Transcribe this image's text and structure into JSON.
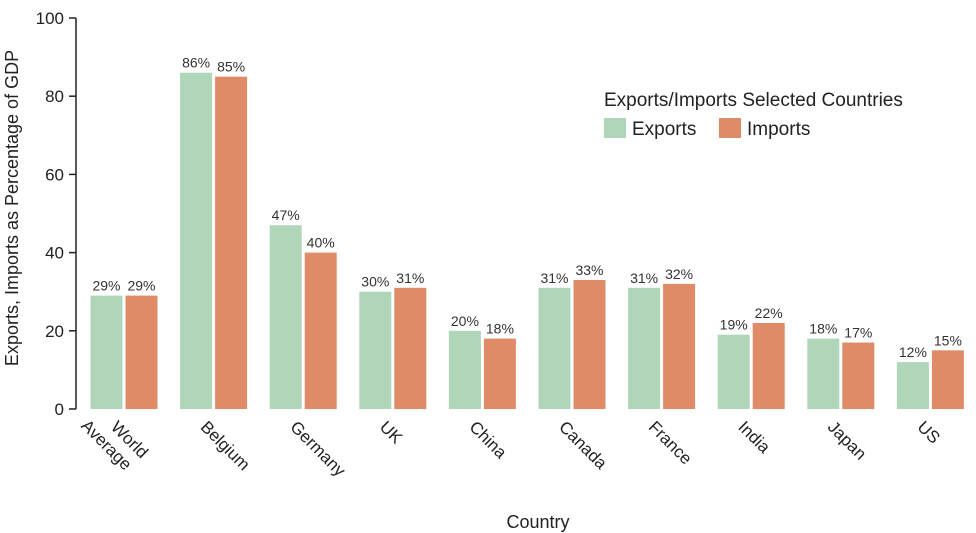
{
  "chart_data": {
    "type": "bar",
    "title": "",
    "xlabel": "Country",
    "ylabel": "Exports, Imports as Percentage of GDP",
    "ylim": [
      0,
      100
    ],
    "yticks": [
      0,
      20,
      40,
      60,
      80,
      100
    ],
    "grid": false,
    "legend": {
      "title": "Exports/Imports Selected Countries",
      "placement": "top-right"
    },
    "categories": [
      "World\nAverage",
      "Belgium",
      "Germany",
      "UK",
      "China",
      "Canada",
      "France",
      "India",
      "Japan",
      "US"
    ],
    "series": [
      {
        "name": "Exports",
        "color": "#afd6b8",
        "values": [
          29,
          86,
          47,
          30,
          20,
          31,
          31,
          19,
          18,
          12
        ],
        "labels": [
          "29%",
          "86%",
          "47%",
          "30%",
          "20%",
          "31%",
          "31%",
          "19%",
          "18%",
          "12%"
        ]
      },
      {
        "name": "Imports",
        "color": "#df8b68",
        "values": [
          29,
          85,
          40,
          31,
          18,
          33,
          32,
          22,
          17,
          15
        ],
        "labels": [
          "29%",
          "85%",
          "40%",
          "31%",
          "18%",
          "33%",
          "32%",
          "22%",
          "17%",
          "15%"
        ]
      }
    ]
  }
}
